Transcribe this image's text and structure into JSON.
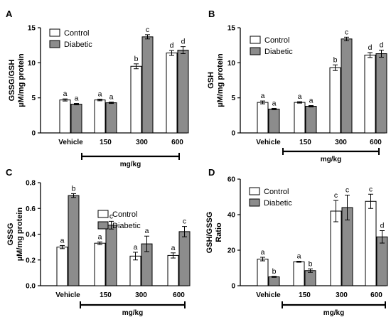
{
  "colors": {
    "control_fill": "#ffffff",
    "diabetic_fill": "#8c8c8c",
    "stroke": "#000000"
  },
  "chart_data": [
    {
      "panel": "A",
      "type": "bar",
      "categories": [
        "Vehicle",
        "150",
        "300",
        "600"
      ],
      "group_label": "mg/kg",
      "ylabel": [
        "GSSG/GSH",
        "µM/mg protein"
      ],
      "ylim": [
        0,
        15
      ],
      "yticks": [
        0,
        5,
        10,
        15
      ],
      "ytick_labels": [
        "0",
        "5",
        "10",
        "15"
      ],
      "legend": "top-left",
      "series": [
        {
          "name": "Control",
          "values": [
            4.7,
            4.7,
            9.5,
            11.4
          ],
          "errors": [
            0.15,
            0.12,
            0.35,
            0.35
          ],
          "sig": [
            "a",
            "a",
            "b",
            "d"
          ]
        },
        {
          "name": "Diabetic",
          "values": [
            4.1,
            4.3,
            13.7,
            11.8
          ],
          "errors": [
            0.1,
            0.1,
            0.3,
            0.5
          ],
          "sig": [
            "a",
            "a",
            "c",
            "d"
          ]
        }
      ]
    },
    {
      "panel": "B",
      "type": "bar",
      "categories": [
        "Vehicle",
        "150",
        "300",
        "600"
      ],
      "group_label": "mg/kg",
      "ylabel": [
        "GSH",
        "µM/mg protein"
      ],
      "ylim": [
        0,
        15
      ],
      "yticks": [
        0,
        5,
        10,
        15
      ],
      "ytick_labels": [
        "0",
        "5",
        "10",
        "15"
      ],
      "legend": "top-left",
      "series": [
        {
          "name": "Control",
          "values": [
            4.35,
            4.35,
            9.3,
            11.1
          ],
          "errors": [
            0.2,
            0.1,
            0.4,
            0.35
          ],
          "sig": [
            "a",
            "a",
            "b",
            "d"
          ]
        },
        {
          "name": "Diabetic",
          "values": [
            3.4,
            3.8,
            13.4,
            11.3
          ],
          "errors": [
            0.1,
            0.1,
            0.25,
            0.5
          ],
          "sig": [
            "a",
            "a",
            "c",
            "d"
          ]
        }
      ]
    },
    {
      "panel": "C",
      "type": "bar",
      "categories": [
        "Vehicle",
        "150",
        "300",
        "600"
      ],
      "group_label": "mg/kg",
      "ylabel": [
        "GSSG",
        "µM/mg protein"
      ],
      "ylim": [
        0,
        0.8
      ],
      "yticks": [
        0,
        0.2,
        0.4,
        0.6,
        0.8
      ],
      "ytick_labels": [
        "0.0",
        "0.2",
        "0.4",
        "0.6",
        "0.8"
      ],
      "legend": "center-right",
      "series": [
        {
          "name": "Control",
          "values": [
            0.3,
            0.33,
            0.23,
            0.235
          ],
          "errors": [
            0.012,
            0.01,
            0.03,
            0.02
          ],
          "sig": [
            "a",
            "a",
            "a",
            "a"
          ]
        },
        {
          "name": "Diabetic",
          "values": [
            0.7,
            0.47,
            0.325,
            0.42
          ],
          "errors": [
            0.015,
            0.03,
            0.06,
            0.04
          ],
          "sig": [
            "b",
            "c",
            "a",
            "c"
          ]
        }
      ]
    },
    {
      "panel": "D",
      "type": "bar",
      "categories": [
        "Vehicle",
        "150",
        "300",
        "600"
      ],
      "group_label": "mg/kg",
      "ylabel": [
        "GSH/GSSG",
        "Ratio"
      ],
      "ylim": [
        0,
        60
      ],
      "yticks": [
        0,
        20,
        40,
        60
      ],
      "ytick_labels": [
        "0",
        "20",
        "40",
        "60"
      ],
      "legend": "top-left",
      "series": [
        {
          "name": "Control",
          "values": [
            15,
            13.5,
            42,
            47.5
          ],
          "errors": [
            1,
            0.3,
            6,
            4
          ],
          "sig": [
            "a",
            "a",
            "c",
            "c"
          ]
        },
        {
          "name": "Diabetic",
          "values": [
            5,
            8.5,
            44,
            27.5
          ],
          "errors": [
            0.3,
            1,
            7,
            3.5
          ],
          "sig": [
            "b",
            "b",
            "c",
            "d"
          ]
        }
      ]
    }
  ]
}
